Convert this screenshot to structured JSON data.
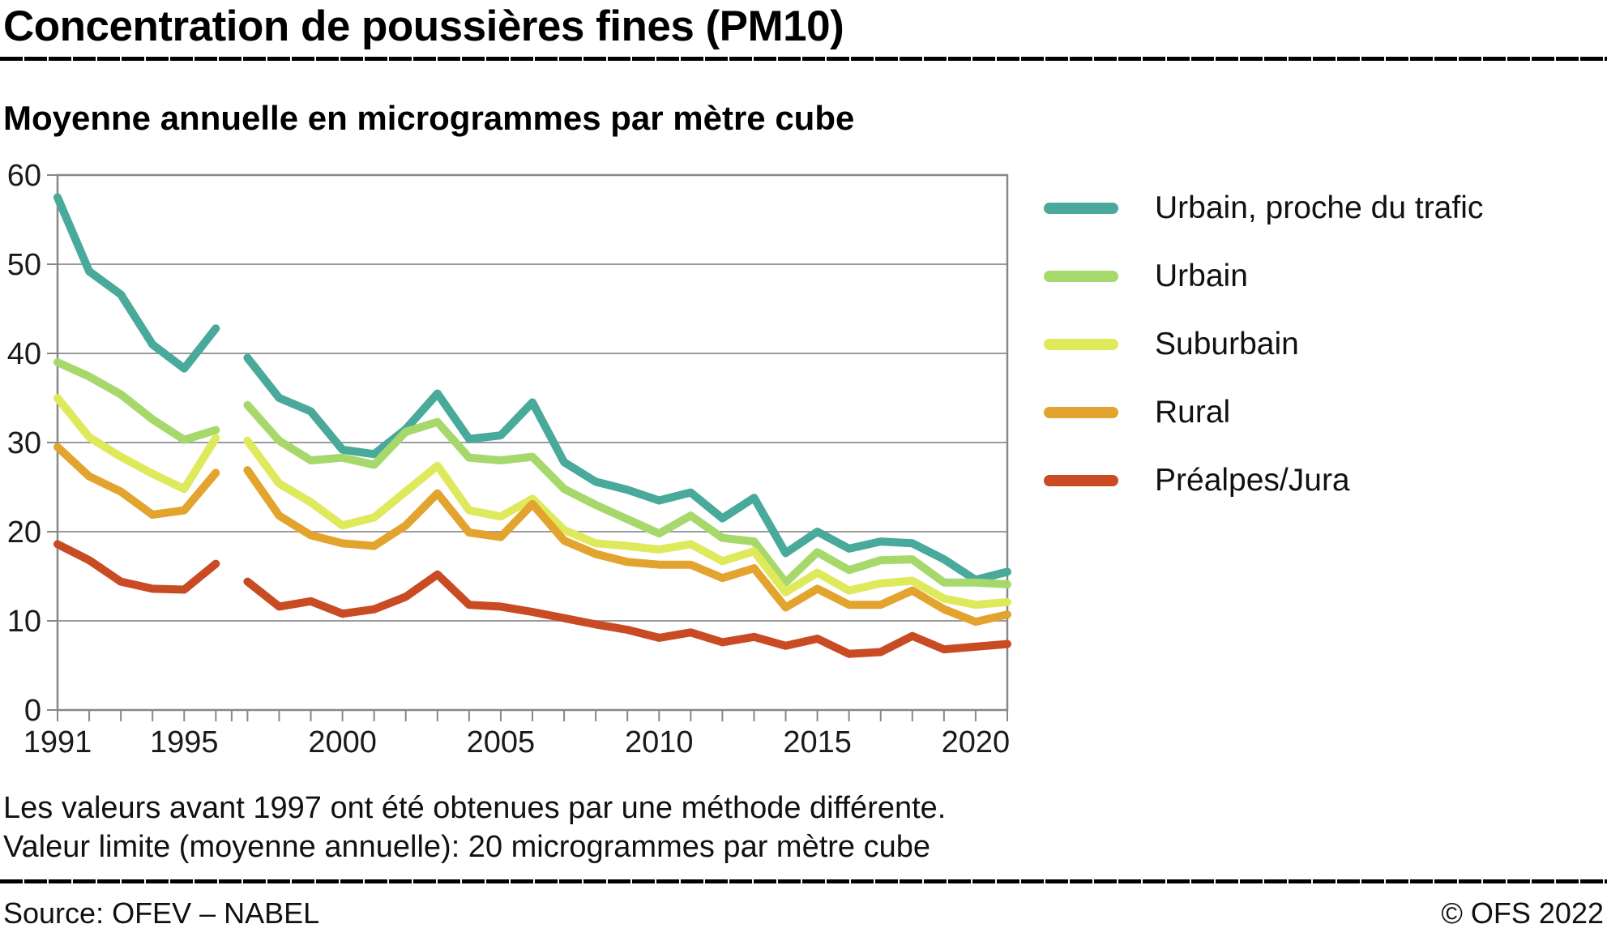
{
  "header": {
    "title": "Concentration de poussières fines (PM10)",
    "subtitle": "Moyenne annuelle en microgrammes par mètre cube"
  },
  "footnotes": {
    "line1": "Les valeurs avant 1997 ont été obtenues par une méthode différente.",
    "line2": "Valeur limite (moyenne annuelle): 20 microgrammes par mètre cube"
  },
  "source": {
    "left": "Source: OFEV – NABEL",
    "right": "© OFS 2022"
  },
  "colors": {
    "urbain_trafic": "#49a99a",
    "urbain": "#a7d86c",
    "suburbain": "#dfe95c",
    "rural": "#e2a42e",
    "prealpes_jura": "#c94b24",
    "gridline": "#9b9b9b",
    "plot_border": "#878787",
    "axis_text": "#1a1a1a"
  },
  "legend": [
    {
      "label": "Urbain, proche du trafic",
      "color": "#49a99a"
    },
    {
      "label": "Urbain",
      "color": "#a7d86c"
    },
    {
      "label": "Suburbain",
      "color": "#dfe95c"
    },
    {
      "label": "Rural",
      "color": "#e2a42e"
    },
    {
      "label": "Préalpes/Jura",
      "color": "#c94b24"
    }
  ],
  "chart_data": {
    "type": "line",
    "title": "Concentration de poussières fines (PM10)",
    "ylabel": "microgrammes par mètre cube",
    "ylim": [
      0,
      60
    ],
    "yticks": [
      0,
      10,
      20,
      30,
      40,
      50,
      60
    ],
    "x_range": [
      1991,
      2021
    ],
    "xtick_every_year": true,
    "xtick_labeled_years": [
      1991,
      1995,
      2000,
      2005,
      2010,
      2015,
      2020
    ],
    "x_break_between": [
      1996,
      1997
    ],
    "grid": "horizontal",
    "legend_position": "right",
    "series": [
      {
        "name": "Urbain, proche du trafic",
        "color": "#49a99a",
        "segments": [
          {
            "start_year": 1991,
            "values": [
              57.5,
              49.2,
              46.6,
              41.0,
              38.3,
              42.8
            ]
          },
          {
            "start_year": 1997,
            "values": [
              39.5,
              35.0,
              33.5,
              29.2,
              28.7,
              31.5,
              35.5,
              30.4,
              30.8,
              34.5,
              27.8,
              25.6,
              24.7,
              23.5,
              24.4,
              21.5,
              23.8,
              17.6,
              20.0,
              18.1,
              18.9,
              18.7,
              16.9,
              14.6,
              15.5
            ]
          }
        ]
      },
      {
        "name": "Urbain",
        "color": "#a7d86c",
        "segments": [
          {
            "start_year": 1991,
            "values": [
              39.0,
              37.4,
              35.4,
              32.6,
              30.3,
              31.4
            ]
          },
          {
            "start_year": 1997,
            "values": [
              34.2,
              30.2,
              28.0,
              28.3,
              27.5,
              31.2,
              32.3,
              28.3,
              28.0,
              28.4,
              24.8,
              23.0,
              21.4,
              19.8,
              21.8,
              19.3,
              18.9,
              14.3,
              17.7,
              15.7,
              16.8,
              16.9,
              14.3,
              14.3,
              14.1
            ]
          }
        ]
      },
      {
        "name": "Suburbain",
        "color": "#dfe95c",
        "segments": [
          {
            "start_year": 1991,
            "values": [
              35.0,
              30.6,
              28.4,
              26.5,
              24.8,
              30.5
            ]
          },
          {
            "start_year": 1997,
            "values": [
              30.2,
              25.4,
              23.3,
              20.7,
              21.6,
              24.5,
              27.4,
              22.4,
              21.7,
              23.7,
              20.2,
              18.7,
              18.4,
              18.0,
              18.6,
              16.7,
              17.8,
              13.2,
              15.4,
              13.4,
              14.2,
              14.5,
              12.5,
              11.8,
              12.1
            ]
          }
        ]
      },
      {
        "name": "Rural",
        "color": "#e2a42e",
        "segments": [
          {
            "start_year": 1991,
            "values": [
              29.5,
              26.2,
              24.5,
              21.9,
              22.4,
              26.6
            ]
          },
          {
            "start_year": 1997,
            "values": [
              26.9,
              21.8,
              19.6,
              18.7,
              18.4,
              20.7,
              24.3,
              19.9,
              19.4,
              23.1,
              19.0,
              17.5,
              16.6,
              16.3,
              16.3,
              14.8,
              15.9,
              11.5,
              13.6,
              11.8,
              11.8,
              13.4,
              11.3,
              9.9,
              10.7
            ]
          }
        ]
      },
      {
        "name": "Préalpes/Jura",
        "color": "#c94b24",
        "segments": [
          {
            "start_year": 1991,
            "values": [
              18.6,
              16.8,
              14.4,
              13.6,
              13.5,
              16.4
            ]
          },
          {
            "start_year": 1997,
            "values": [
              14.4,
              11.6,
              12.2,
              10.8,
              11.3,
              12.7,
              15.2,
              11.8,
              11.6,
              11.0,
              10.3,
              9.6,
              9.0,
              8.1,
              8.7,
              7.6,
              8.2,
              7.2,
              8.0,
              6.3,
              6.5,
              8.3,
              6.8,
              7.1,
              7.4
            ]
          }
        ]
      }
    ]
  }
}
